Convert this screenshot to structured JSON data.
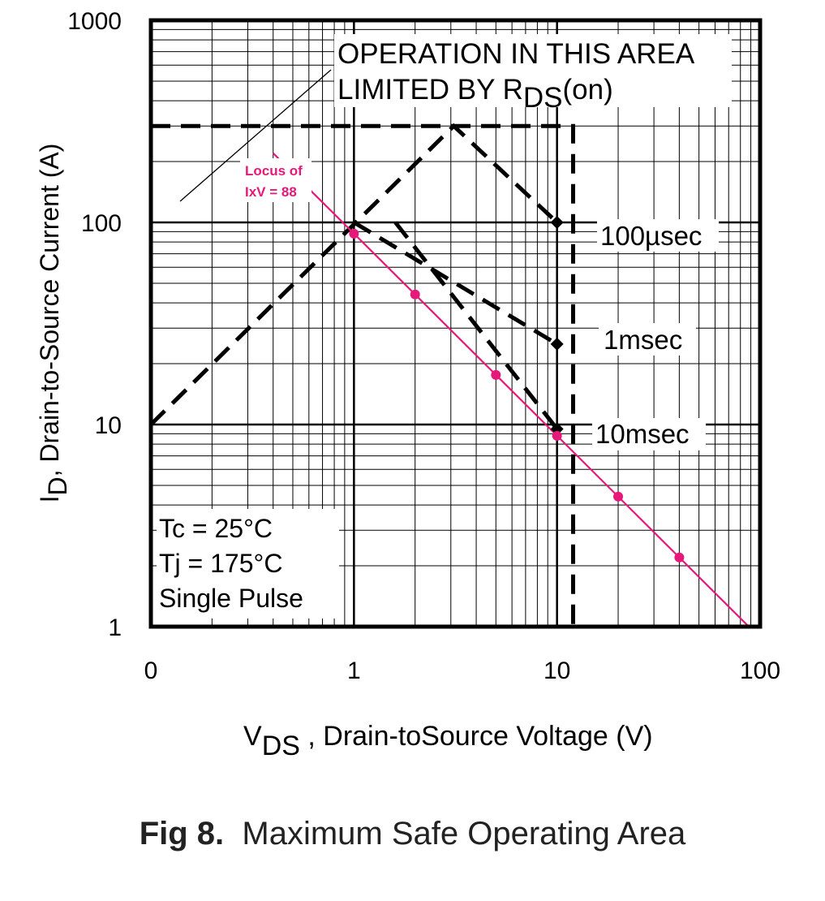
{
  "chart_data": {
    "type": "line",
    "x_scale": "log",
    "y_scale": "log",
    "xlim": [
      0.1,
      100
    ],
    "ylim": [
      1,
      1000
    ],
    "x_tick_labels": [
      "0",
      "1",
      "10",
      "100"
    ],
    "y_tick_labels": [
      "1",
      "10",
      "100",
      "1000"
    ],
    "ylabel_main": "I",
    "ylabel_sub": "D",
    "ylabel_rest": ",  Drain-to-Source Current (A)",
    "xlabel_main": "V",
    "xlabel_sub": "DS",
    "xlabel_rest": " , Drain-toSource Voltage (V)",
    "grid": true,
    "annotations": {
      "rds_line1": "OPERATION IN THIS AREA",
      "rds_line2_main": "LIMITED BY R",
      "rds_line2_sub": "DS",
      "rds_line2_end": "(on)",
      "locus_line1": "Locus of",
      "locus_line2": "IxV = 88",
      "conditions": [
        "Tc = 25°C",
        "Tj = 175°C",
        "Single Pulse"
      ]
    },
    "series": [
      {
        "name": "100µsec",
        "style": "dashed",
        "color": "#000000",
        "points": [
          [
            0.1,
            10
          ],
          [
            3.1,
            300
          ],
          [
            10,
            100
          ]
        ]
      },
      {
        "name": "1msec",
        "style": "dashed",
        "color": "#000000",
        "points": [
          [
            1,
            100
          ],
          [
            10,
            25
          ]
        ]
      },
      {
        "name": "10msec",
        "style": "dashed",
        "color": "#000000",
        "points": [
          [
            1.6,
            100
          ],
          [
            10,
            9.5
          ]
        ]
      },
      {
        "name": "",
        "style": "dashed",
        "color": "#000000",
        "points": [
          [
            0.1,
            300
          ],
          [
            12,
            300
          ],
          [
            12,
            1
          ]
        ]
      },
      {
        "name": "",
        "style": "solid",
        "color": "#e6187a",
        "points": [
          [
            0.4,
            220
          ],
          [
            88,
            1
          ]
        ]
      }
    ],
    "locus_points": [
      [
        1,
        88
      ],
      [
        2,
        44
      ],
      [
        5,
        17.6
      ],
      [
        10,
        8.8
      ],
      [
        20,
        4.4
      ],
      [
        40,
        2.2
      ]
    ],
    "colors": {
      "locus": "#e6187a",
      "axis": "#000000",
      "grid": "#000000"
    }
  },
  "caption": {
    "bold": "Fig 8.",
    "text": "Maximum Safe Operating Area"
  }
}
